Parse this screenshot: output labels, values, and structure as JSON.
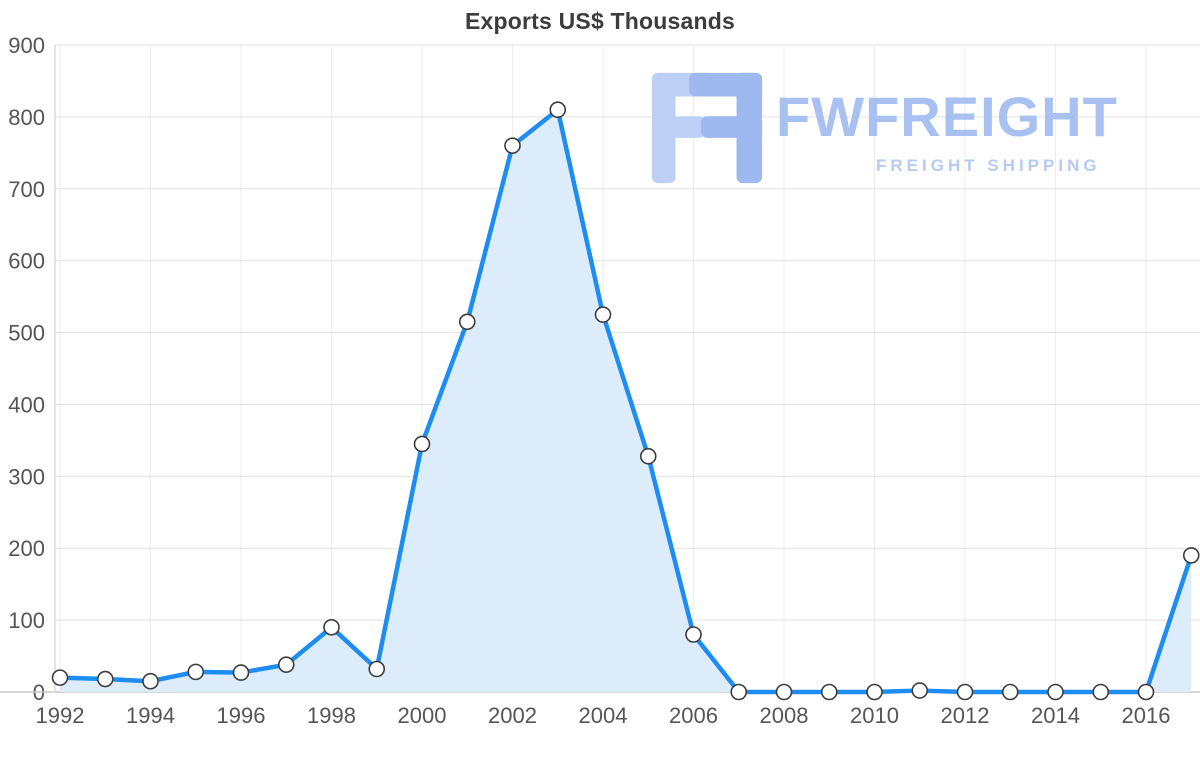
{
  "title": "Exports US$ Thousands",
  "watermark": {
    "brand": "FWFREIGHT",
    "tagline": "FREIGHT SHIPPING"
  },
  "chart_data": {
    "type": "area",
    "title": "Exports US$ Thousands",
    "xlabel": "",
    "ylabel": "",
    "x": [
      1992,
      1993,
      1994,
      1995,
      1996,
      1997,
      1998,
      1999,
      2000,
      2001,
      2002,
      2003,
      2004,
      2005,
      2006,
      2007,
      2008,
      2009,
      2010,
      2011,
      2012,
      2013,
      2014,
      2015,
      2016,
      2017
    ],
    "values": [
      20,
      18,
      15,
      28,
      27,
      38,
      90,
      32,
      345,
      515,
      760,
      810,
      525,
      328,
      80,
      0,
      0,
      0,
      0,
      2,
      0,
      0,
      0,
      0,
      0,
      190
    ],
    "x_ticks": [
      1992,
      1994,
      1996,
      1998,
      2000,
      2002,
      2004,
      2006,
      2008,
      2010,
      2012,
      2014,
      2016
    ],
    "y_ticks": [
      0,
      100,
      200,
      300,
      400,
      500,
      600,
      700,
      800,
      900
    ],
    "xlim": [
      1992,
      2017
    ],
    "ylim": [
      0,
      900
    ],
    "grid": true,
    "legend": "none",
    "colors": {
      "line": "#1e8df2",
      "area": "#dcecfb",
      "marker_fill": "#ffffff",
      "marker_stroke": "#3c3c3c",
      "grid_h": "#e2e2e2",
      "grid_v": "#ededed",
      "axis": "#c8c8c8",
      "tick_text": "#555555",
      "title_text": "#3c3c3c",
      "watermark": "#a9c1f0"
    }
  }
}
